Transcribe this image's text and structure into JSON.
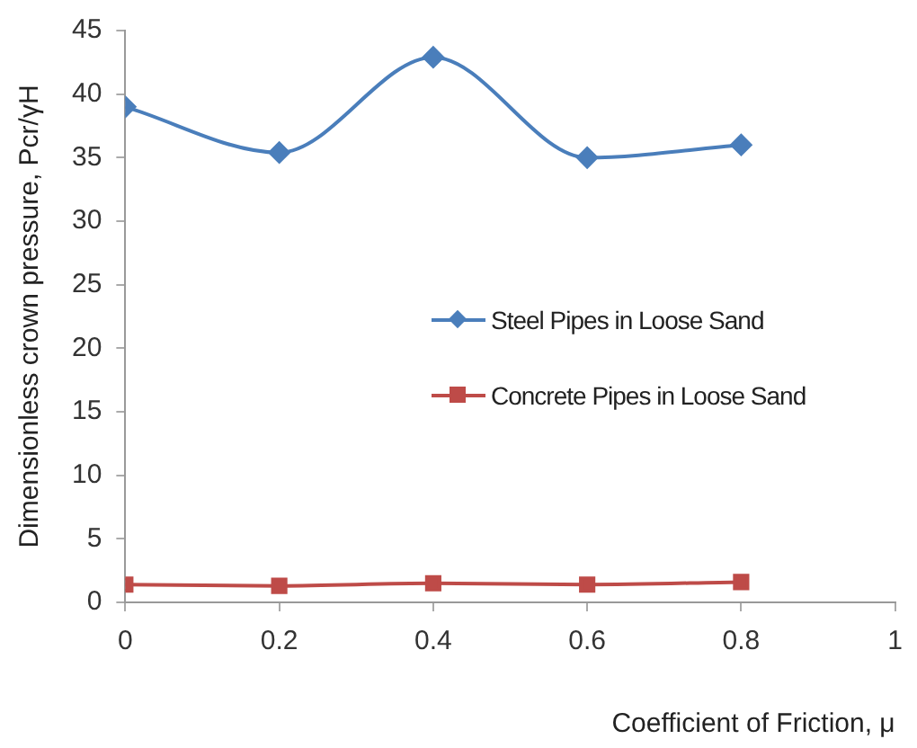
{
  "chart_data": {
    "type": "line",
    "xlabel": "Coefficient of Friction, μ",
    "ylabel": "Dimensionless crown pressure, Pcr/γH",
    "x": [
      0,
      0.2,
      0.4,
      0.6,
      0.8
    ],
    "series": [
      {
        "name": "Steel Pipes in Loose Sand",
        "color": "#4a7ebb",
        "marker": "diamond",
        "values": [
          39,
          35.4,
          42.9,
          35,
          36
        ]
      },
      {
        "name": "Concrete Pipes in Loose Sand",
        "color": "#be4b48",
        "marker": "square",
        "values": [
          1.4,
          1.3,
          1.5,
          1.4,
          1.6
        ]
      }
    ],
    "xlim": [
      0,
      1
    ],
    "xticks": [
      0,
      0.2,
      0.4,
      0.6,
      0.8,
      1
    ],
    "ylim": [
      0,
      45
    ],
    "yticks": [
      0,
      5,
      10,
      15,
      20,
      25,
      30,
      35,
      40,
      45
    ],
    "grid": false,
    "legend": "right"
  }
}
